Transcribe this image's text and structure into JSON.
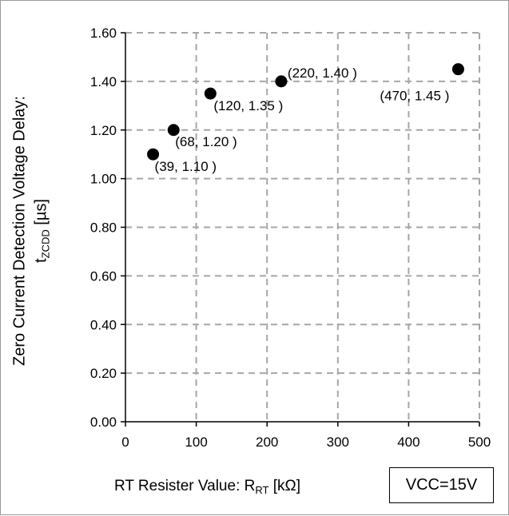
{
  "chart_data": {
    "type": "scatter",
    "x": [
      39,
      68,
      120,
      220,
      470
    ],
    "y": [
      1.1,
      1.2,
      1.35,
      1.4,
      1.45
    ],
    "point_labels": [
      "(39, 1.10 )",
      "(68, 1.20 )",
      "(120, 1.35 )",
      "(220, 1.40 )",
      "(470, 1.45 )"
    ],
    "xlim": [
      0,
      500
    ],
    "ylim": [
      0,
      1.6
    ],
    "x_ticks": [
      0,
      100,
      200,
      300,
      400,
      500
    ],
    "y_ticks": [
      0,
      0.2,
      0.4,
      0.6,
      0.8,
      1.0,
      1.2,
      1.4,
      1.6
    ],
    "x_tick_labels": [
      "0",
      "100",
      "200",
      "300",
      "400",
      "500"
    ],
    "y_tick_labels": [
      "0.00",
      "0.20",
      "0.40",
      "0.60",
      "0.80",
      "1.00",
      "1.20",
      "1.40",
      "1.60"
    ],
    "grid": "dashed",
    "marker_color": "#000000",
    "grid_color": "#a6a6a6",
    "ylabel": {
      "line1": "Zero Current Detection Voltage Delay:",
      "symbol": "t",
      "subscript": "ZCDD",
      "unit": " [µs]"
    },
    "xlabel": {
      "text": "RT Resister Value: R",
      "subscript": "RT",
      "unit": " [kΩ]"
    },
    "annotation": "VCC=15V"
  }
}
